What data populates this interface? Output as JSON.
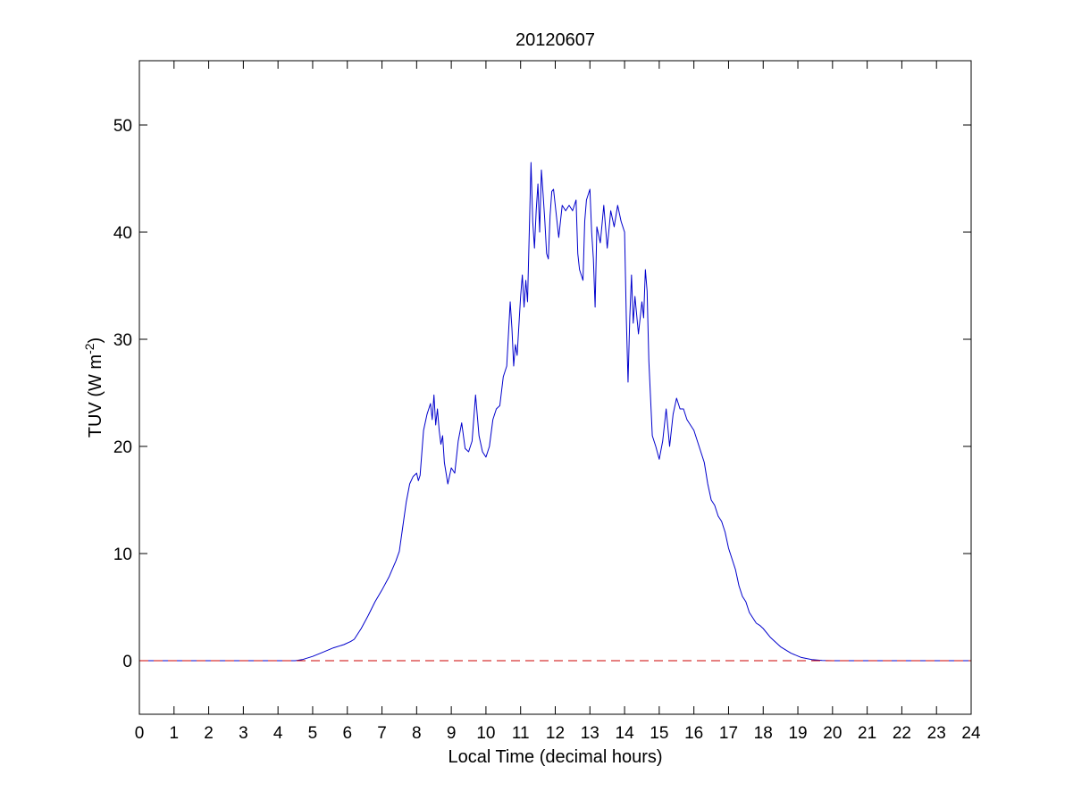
{
  "chart_data": {
    "type": "line",
    "title": "20120607",
    "xlabel": "Local Time (decimal hours)",
    "ylabel": "TUV (W m",
    "ylabel_superscript": "-2",
    "ylabel_suffix": ")",
    "xlim": [
      0,
      24
    ],
    "ylim": [
      -5,
      56
    ],
    "xticks": [
      "0",
      "1",
      "2",
      "3",
      "4",
      "5",
      "6",
      "7",
      "8",
      "9",
      "10",
      "11",
      "12",
      "13",
      "14",
      "15",
      "16",
      "17",
      "18",
      "19",
      "20",
      "21",
      "22",
      "23",
      "24"
    ],
    "yticks": [
      "0",
      "10",
      "20",
      "30",
      "40",
      "50"
    ],
    "grid": false,
    "series": [
      {
        "color": "#0000cc",
        "style": "solid",
        "x": [
          0,
          4.5,
          4.7,
          5.0,
          5.3,
          5.6,
          5.9,
          6.1,
          6.2,
          6.4,
          6.6,
          6.8,
          7.0,
          7.2,
          7.4,
          7.5,
          7.6,
          7.7,
          7.8,
          7.9,
          8.0,
          8.05,
          8.1,
          8.2,
          8.3,
          8.4,
          8.45,
          8.5,
          8.55,
          8.6,
          8.65,
          8.7,
          8.75,
          8.8,
          8.9,
          9.0,
          9.1,
          9.2,
          9.3,
          9.4,
          9.5,
          9.6,
          9.7,
          9.8,
          9.9,
          10.0,
          10.1,
          10.2,
          10.3,
          10.4,
          10.5,
          10.6,
          10.7,
          10.75,
          10.8,
          10.85,
          10.9,
          11.0,
          11.05,
          11.1,
          11.15,
          11.2,
          11.25,
          11.3,
          11.35,
          11.4,
          11.45,
          11.5,
          11.55,
          11.6,
          11.65,
          11.7,
          11.75,
          11.8,
          11.85,
          11.9,
          11.95,
          12.0,
          12.1,
          12.2,
          12.3,
          12.4,
          12.5,
          12.6,
          12.65,
          12.7,
          12.75,
          12.8,
          12.85,
          12.9,
          13.0,
          13.05,
          13.1,
          13.15,
          13.2,
          13.3,
          13.4,
          13.5,
          13.6,
          13.7,
          13.8,
          13.9,
          14.0,
          14.05,
          14.1,
          14.15,
          14.2,
          14.25,
          14.3,
          14.4,
          14.5,
          14.55,
          14.6,
          14.65,
          14.7,
          14.8,
          14.9,
          15.0,
          15.1,
          15.2,
          15.3,
          15.4,
          15.5,
          15.6,
          15.7,
          15.8,
          15.9,
          16.0,
          16.1,
          16.2,
          16.3,
          16.4,
          16.5,
          16.6,
          16.7,
          16.8,
          16.9,
          17.0,
          17.1,
          17.2,
          17.3,
          17.4,
          17.5,
          17.6,
          17.7,
          17.8,
          17.9,
          18.0,
          18.2,
          18.5,
          18.8,
          19.1,
          19.4,
          19.7,
          20.0,
          24
        ],
        "y": [
          0,
          0,
          0.1,
          0.4,
          0.8,
          1.2,
          1.5,
          1.8,
          2.0,
          3.0,
          4.2,
          5.5,
          6.6,
          7.8,
          9.3,
          10.2,
          12.5,
          14.8,
          16.5,
          17.2,
          17.5,
          16.8,
          17.3,
          21.5,
          23.0,
          24.0,
          22.5,
          24.8,
          22.0,
          23.5,
          21.5,
          20.2,
          21.0,
          18.5,
          16.5,
          18.0,
          17.5,
          20.5,
          22.2,
          19.8,
          19.5,
          20.5,
          24.8,
          21.0,
          19.5,
          19.0,
          20.0,
          22.5,
          23.5,
          23.8,
          26.5,
          27.5,
          33.5,
          31.0,
          27.5,
          29.5,
          28.5,
          34.0,
          36.0,
          33.0,
          35.5,
          33.5,
          40.0,
          46.5,
          41.0,
          38.5,
          42.0,
          44.5,
          40.0,
          45.8,
          43.5,
          41.0,
          38.0,
          37.5,
          41.5,
          43.8,
          44.0,
          42.5,
          39.5,
          42.5,
          42.0,
          42.5,
          42.0,
          43.0,
          38.0,
          36.5,
          36.0,
          35.5,
          41.0,
          43.0,
          44.0,
          40.0,
          37.5,
          33.0,
          40.5,
          39.0,
          42.5,
          38.5,
          42.0,
          40.5,
          42.5,
          41.0,
          40.0,
          32.0,
          26.0,
          32.0,
          36.0,
          31.5,
          34.0,
          30.5,
          33.5,
          32.0,
          36.5,
          34.5,
          28.0,
          21.0,
          20.0,
          18.8,
          20.5,
          23.5,
          20.0,
          23.0,
          24.5,
          23.5,
          23.5,
          22.5,
          22.0,
          21.5,
          20.5,
          19.5,
          18.5,
          16.5,
          15.0,
          14.5,
          13.5,
          13.0,
          12.0,
          10.5,
          9.5,
          8.5,
          7.0,
          6.0,
          5.5,
          4.5,
          4.0,
          3.5,
          3.3,
          3.0,
          2.2,
          1.3,
          0.7,
          0.3,
          0.1,
          0.02,
          0,
          0
        ]
      },
      {
        "color": "#cc0000",
        "style": "dashed",
        "x": [
          0,
          24
        ],
        "y": [
          0,
          0
        ]
      }
    ]
  }
}
